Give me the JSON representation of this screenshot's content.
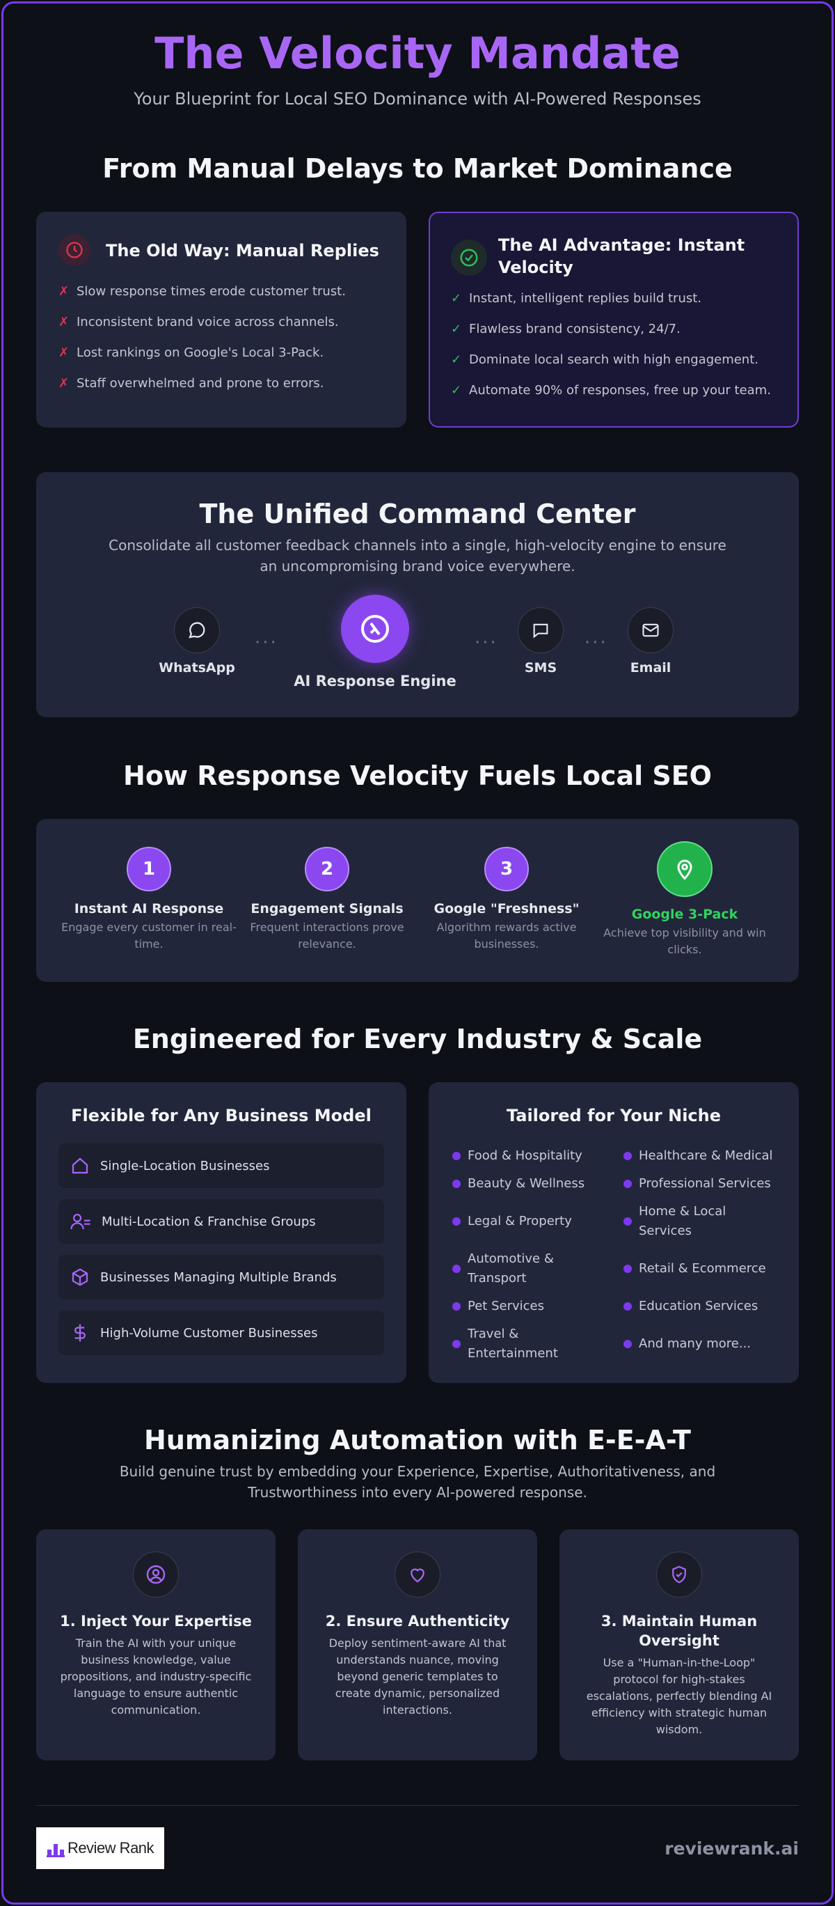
{
  "header": {
    "title": "The Velocity Mandate",
    "subtitle": "Your Blueprint for Local SEO Dominance with AI-Powered Responses"
  },
  "comparison": {
    "title": "From Manual Delays to Market Dominance",
    "old_way": {
      "icon": "clock-icon",
      "title": "The Old Way: Manual Replies",
      "mark": "✗",
      "items": [
        "Slow response times erode customer trust.",
        "Inconsistent brand voice across channels.",
        "Lost rankings on Google's Local 3-Pack.",
        "Staff overwhelmed and prone to errors."
      ]
    },
    "ai_way": {
      "icon": "check-circle-icon",
      "title_line1": "The AI Advantage: Instant",
      "title_line2": "Velocity",
      "mark": "✓",
      "items": [
        "Instant, intelligent replies build trust.",
        "Flawless brand consistency, 24/7.",
        "Dominate local search with high engagement.",
        "Automate 90% of responses, free up your team."
      ]
    }
  },
  "command_center": {
    "title": "The Unified Command Center",
    "desc_line1": "Consolidate all customer feedback channels into a single, high-velocity engine to ensure",
    "desc_line2": "an uncompromising brand voice everywhere.",
    "channels": {
      "whatsapp": "WhatsApp",
      "engine": "AI Response Engine",
      "sms": "SMS",
      "email": "Email"
    },
    "dots": "···"
  },
  "velocity": {
    "title": "How Response Velocity Fuels Local SEO",
    "steps": [
      {
        "num": "1",
        "title": "Instant AI Response",
        "desc1": "Engage every customer in real-",
        "desc2": "time."
      },
      {
        "num": "2",
        "title": "Engagement Signals",
        "desc1": "Frequent interactions prove",
        "desc2": "relevance."
      },
      {
        "num": "3",
        "title": "Google \"Freshness\"",
        "desc1": "Algorithm rewards active",
        "desc2": "businesses."
      },
      {
        "title": "Google 3-Pack",
        "desc1": "Achieve top visibility and win",
        "desc2": "clicks."
      }
    ]
  },
  "industry": {
    "title": "Engineered for Every Industry & Scale",
    "models": {
      "title": "Flexible for Any Business Model",
      "items": [
        "Single-Location Businesses",
        "Multi-Location & Franchise Groups",
        "Businesses Managing Multiple Brands",
        "High-Volume Customer Businesses"
      ]
    },
    "niche": {
      "title": "Tailored for Your Niche",
      "left": [
        "Food & Hospitality",
        "Beauty & Wellness",
        "Legal & Property",
        "Automotive &",
        "Transport",
        "Pet Services",
        "Travel &",
        "Entertainment"
      ],
      "right": [
        "Healthcare & Medical",
        "Professional Services",
        "Home & Local",
        "Services",
        "Retail & Ecommerce",
        "Education Services",
        "And many more..."
      ]
    }
  },
  "eeat": {
    "title": "Humanizing Automation with E-E-A-T",
    "desc_line1": "Build genuine trust by embedding your Experience, Expertise, Authoritativeness, and",
    "desc_line2": "Trustworthiness into every AI-powered response.",
    "cards": [
      {
        "title": "1. Inject Your Expertise",
        "lines": [
          "Train the AI with your unique",
          "business knowledge, value",
          "propositions, and industry-specific",
          "language to ensure authentic",
          "communication."
        ]
      },
      {
        "title": "2. Ensure Authenticity",
        "lines": [
          "Deploy sentiment-aware AI that",
          "understands nuance, moving",
          "beyond generic templates to",
          "create dynamic, personalized",
          "interactions."
        ]
      },
      {
        "title_line1": "3. Maintain Human",
        "title_line2": "Oversight",
        "lines": [
          "Use a \"Human-in-the-Loop\"",
          "protocol for high-stakes",
          "escalations, perfectly blending AI",
          "efficiency with strategic human",
          "wisdom."
        ]
      }
    ]
  },
  "footer": {
    "logo_text": "Review Rank",
    "site": "reviewrank.ai"
  },
  "colors": {
    "accent": "#a866f5",
    "brand_purple": "#7c3aed",
    "success": "#2fbf5a",
    "danger": "#e0334f",
    "background": "#0d1017",
    "card": "#22263a"
  }
}
